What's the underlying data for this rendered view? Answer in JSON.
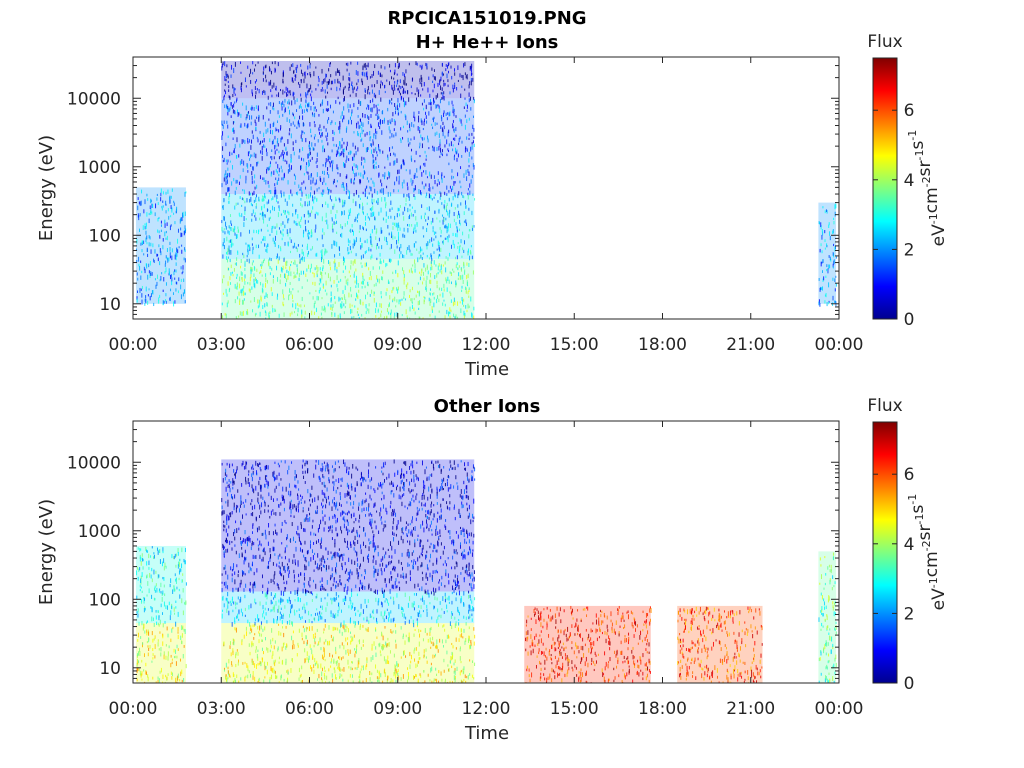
{
  "figure": {
    "title": "RPCICA151019.PNG",
    "panels": [
      {
        "title": "H+ He++ Ions",
        "xlabel": "Time",
        "ylabel": "Energy (eV)",
        "colorbar": {
          "title": "Flux",
          "label": "eV-1cm-2sr-1s-1",
          "ticks": [
            "0",
            "2",
            "4",
            "6"
          ]
        }
      },
      {
        "title": "Other Ions",
        "xlabel": "Time",
        "ylabel": "Energy (eV)",
        "colorbar": {
          "title": "Flux",
          "label": "eV-1cm-2sr-1s-1",
          "ticks": [
            "0",
            "2",
            "4",
            "6"
          ]
        }
      }
    ],
    "x_ticks": [
      "00:00",
      "03:00",
      "06:00",
      "09:00",
      "12:00",
      "15:00",
      "18:00",
      "21:00",
      "00:00"
    ],
    "y_ticks": [
      "10",
      "100",
      "1000",
      "10000"
    ]
  },
  "chart_data": [
    {
      "type": "heatmap",
      "title": "H+ He++ Ions",
      "xlabel": "Time",
      "ylabel": "Energy (eV)",
      "x_unit": "hours of day",
      "xlim_hours": [
        0,
        24
      ],
      "ylim": [
        6,
        40000
      ],
      "y_scale": "log",
      "clim": [
        0,
        7.5
      ],
      "colormap": "jet",
      "regions": [
        {
          "t_start": 0.1,
          "t_end": 1.8,
          "e_min": 10,
          "e_max": 500,
          "flux": 2.0
        },
        {
          "t_start": 3.0,
          "t_end": 11.6,
          "e_min": 6,
          "e_max": 45,
          "flux": 3.5
        },
        {
          "t_start": 3.0,
          "t_end": 11.6,
          "e_min": 45,
          "e_max": 400,
          "flux": 2.5
        },
        {
          "t_start": 3.0,
          "t_end": 11.6,
          "e_min": 400,
          "e_max": 10000,
          "flux": 1.5
        },
        {
          "t_start": 3.0,
          "t_end": 11.6,
          "e_min": 10000,
          "e_max": 15000,
          "flux": 0.6
        },
        {
          "t_start": 3.0,
          "t_end": 11.6,
          "e_min": 15000,
          "e_max": 35000,
          "flux": 0.4
        },
        {
          "t_start": 23.3,
          "t_end": 23.9,
          "e_min": 10,
          "e_max": 300,
          "flux": 2.0
        }
      ]
    },
    {
      "type": "heatmap",
      "title": "Other Ions",
      "xlabel": "Time",
      "ylabel": "Energy (eV)",
      "x_unit": "hours of day",
      "xlim_hours": [
        0,
        24
      ],
      "ylim": [
        6,
        40000
      ],
      "y_scale": "log",
      "clim": [
        0,
        7.5
      ],
      "colormap": "jet",
      "regions": [
        {
          "t_start": 0.1,
          "t_end": 1.8,
          "e_min": 6,
          "e_max": 45,
          "flux": 4.5
        },
        {
          "t_start": 0.1,
          "t_end": 1.8,
          "e_min": 45,
          "e_max": 600,
          "flux": 3.0
        },
        {
          "t_start": 3.0,
          "t_end": 11.6,
          "e_min": 6,
          "e_max": 45,
          "flux": 4.5
        },
        {
          "t_start": 3.0,
          "t_end": 11.6,
          "e_min": 45,
          "e_max": 130,
          "flux": 2.5
        },
        {
          "t_start": 3.0,
          "t_end": 11.6,
          "e_min": 130,
          "e_max": 11000,
          "flux": 0.8
        },
        {
          "t_start": 13.3,
          "t_end": 17.6,
          "e_min": 6,
          "e_max": 80,
          "flux": 6.3
        },
        {
          "t_start": 18.5,
          "t_end": 21.4,
          "e_min": 6,
          "e_max": 80,
          "flux": 6.0
        },
        {
          "t_start": 23.3,
          "t_end": 23.9,
          "e_min": 6,
          "e_max": 500,
          "flux": 3.5
        }
      ]
    }
  ]
}
